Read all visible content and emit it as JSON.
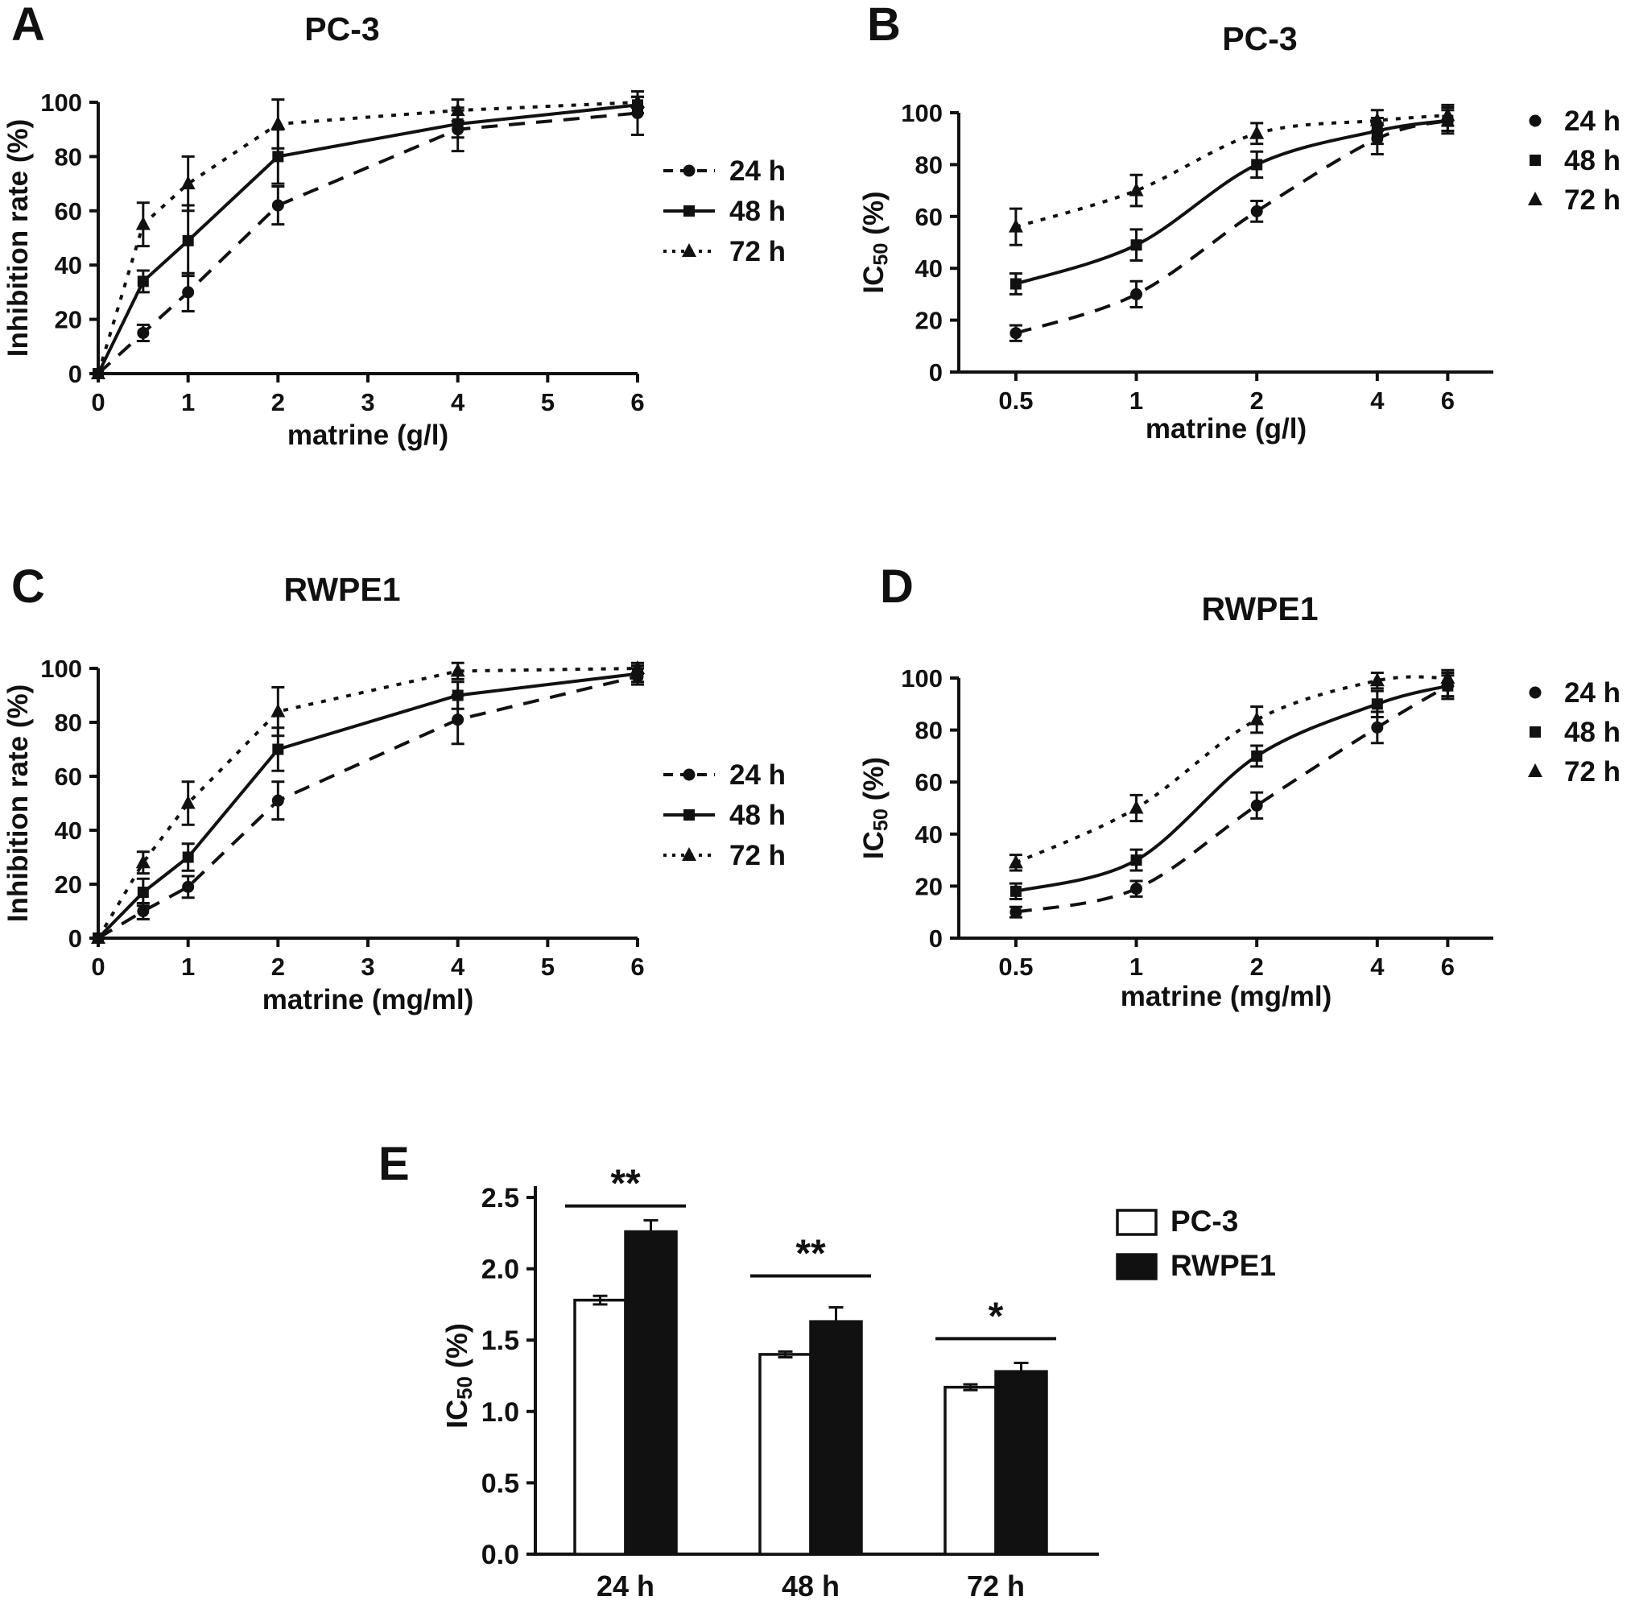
{
  "figure": {
    "background": "#ffffff",
    "ink": "#111111"
  },
  "chart_data": [
    {
      "key": "A",
      "letter": "A",
      "title": "PC-3",
      "type": "line",
      "xlabel": "matrine (g/l)",
      "ylabel": "Inhibition rate (%)",
      "x_scale": "linear",
      "xlim": [
        0,
        6
      ],
      "ylim": [
        0,
        100
      ],
      "x_ticks": [
        0,
        1,
        2,
        3,
        4,
        5,
        6
      ],
      "y_ticks": [
        0,
        20,
        40,
        60,
        80,
        100
      ],
      "smooth": false,
      "x": [
        0,
        0.5,
        1,
        2,
        4,
        6
      ],
      "series": [
        {
          "name": "24 h",
          "marker": "circle",
          "line": "dashed",
          "values": [
            0,
            15,
            30,
            62,
            90,
            96
          ],
          "errors": [
            0,
            3,
            7,
            7,
            8,
            8
          ]
        },
        {
          "name": "48 h",
          "marker": "square",
          "line": "solid",
          "values": [
            0,
            34,
            49,
            80,
            92,
            99
          ],
          "errors": [
            0,
            4,
            13,
            10,
            5,
            3
          ]
        },
        {
          "name": "72 h",
          "marker": "triangle",
          "line": "dotted",
          "values": [
            0,
            55,
            70,
            92,
            97,
            100
          ],
          "errors": [
            0,
            8,
            10,
            9,
            4,
            2
          ]
        }
      ],
      "legend_style": "line-marker",
      "legend_labels": [
        "24 h",
        "48 h",
        "72 h"
      ]
    },
    {
      "key": "B",
      "letter": "B",
      "title": "PC-3",
      "type": "line",
      "xlabel": "matrine (g/l)",
      "ylabel": "IC_{50} (%)",
      "x_scale": "log",
      "xlim": [
        0.36,
        7.8
      ],
      "ylim": [
        0,
        100
      ],
      "x_ticks": [
        0.5,
        1,
        2,
        4,
        6
      ],
      "y_ticks": [
        0,
        20,
        40,
        60,
        80,
        100
      ],
      "smooth": true,
      "x": [
        0.5,
        1,
        2,
        4,
        6
      ],
      "series": [
        {
          "name": "24 h",
          "marker": "circle",
          "line": "dashed",
          "values": [
            15,
            30,
            62,
            90,
            97
          ],
          "errors": [
            3,
            5,
            4,
            6,
            5
          ]
        },
        {
          "name": "48 h",
          "marker": "square",
          "line": "solid",
          "values": [
            34,
            49,
            80,
            93,
            97
          ],
          "errors": [
            4,
            6,
            5,
            5,
            4
          ]
        },
        {
          "name": "72 h",
          "marker": "triangle",
          "line": "dotted",
          "values": [
            56,
            70,
            92,
            97,
            99
          ],
          "errors": [
            7,
            6,
            4,
            4,
            4
          ]
        }
      ],
      "legend_style": "marker",
      "legend_labels": [
        "24 h",
        "48 h",
        "72 h"
      ]
    },
    {
      "key": "C",
      "letter": "C",
      "title": "RWPE1",
      "type": "line",
      "xlabel": "matrine (mg/ml)",
      "ylabel": "Inhibition rate (%)",
      "x_scale": "linear",
      "xlim": [
        0,
        6
      ],
      "ylim": [
        0,
        100
      ],
      "x_ticks": [
        0,
        1,
        2,
        3,
        4,
        5,
        6
      ],
      "y_ticks": [
        0,
        20,
        40,
        60,
        80,
        100
      ],
      "smooth": false,
      "x": [
        0,
        0.5,
        1,
        2,
        4,
        6
      ],
      "series": [
        {
          "name": "24 h",
          "marker": "circle",
          "line": "dashed",
          "values": [
            0,
            10,
            19,
            51,
            81,
            97
          ],
          "errors": [
            0,
            3,
            4,
            7,
            9,
            3
          ]
        },
        {
          "name": "48 h",
          "marker": "square",
          "line": "solid",
          "values": [
            0,
            17,
            30,
            70,
            90,
            98
          ],
          "errors": [
            0,
            5,
            5,
            8,
            5,
            3
          ]
        },
        {
          "name": "72 h",
          "marker": "triangle",
          "line": "dotted",
          "values": [
            0,
            28,
            50,
            84,
            99,
            100
          ],
          "errors": [
            0,
            4,
            8,
            9,
            3,
            2
          ]
        }
      ],
      "legend_style": "line-marker",
      "legend_labels": [
        "24 h",
        "48 h",
        "72 h"
      ]
    },
    {
      "key": "D",
      "letter": "D",
      "title": "RWPE1",
      "type": "line",
      "xlabel": "matrine (mg/ml)",
      "ylabel": "IC_{50} (%)",
      "x_scale": "log",
      "xlim": [
        0.36,
        7.8
      ],
      "ylim": [
        0,
        100
      ],
      "x_ticks": [
        0.5,
        1,
        2,
        4,
        6
      ],
      "y_ticks": [
        0,
        20,
        40,
        60,
        80,
        100
      ],
      "smooth": true,
      "x": [
        0.5,
        1,
        2,
        4,
        6
      ],
      "series": [
        {
          "name": "24 h",
          "marker": "circle",
          "line": "dashed",
          "values": [
            10,
            19,
            51,
            81,
            97
          ],
          "errors": [
            2,
            3,
            5,
            6,
            5
          ]
        },
        {
          "name": "48 h",
          "marker": "square",
          "line": "solid",
          "values": [
            18,
            30,
            70,
            90,
            97
          ],
          "errors": [
            3,
            4,
            4,
            5,
            4
          ]
        },
        {
          "name": "72 h",
          "marker": "triangle",
          "line": "dotted",
          "values": [
            29,
            50,
            84,
            99,
            100
          ],
          "errors": [
            3,
            5,
            5,
            3,
            3
          ]
        }
      ],
      "legend_style": "marker",
      "legend_labels": [
        "24 h",
        "48 h",
        "72 h"
      ]
    },
    {
      "key": "E",
      "letter": "E",
      "type": "bar",
      "ylabel": "IC_{50} (%)",
      "categories": [
        "24 h",
        "48 h",
        "72 h"
      ],
      "ylim": [
        0,
        2.5
      ],
      "y_ticks": [
        "0.0",
        "0.5",
        "1.0",
        "1.5",
        "2.0",
        "2.5"
      ],
      "series": [
        {
          "name": "PC-3",
          "fill": "#ffffff",
          "values": [
            1.78,
            1.4,
            1.17
          ],
          "errors": [
            0.03,
            0.02,
            0.02
          ]
        },
        {
          "name": "RWPE1",
          "fill": "#111111",
          "values": [
            2.26,
            1.63,
            1.28
          ],
          "errors": [
            0.08,
            0.1,
            0.06
          ]
        }
      ],
      "significance": [
        {
          "label": "**",
          "y": 2.44
        },
        {
          "label": "**",
          "y": 1.95
        },
        {
          "label": "*",
          "y": 1.51
        }
      ],
      "legend_labels": [
        "PC-3",
        "RWPE1"
      ]
    }
  ]
}
